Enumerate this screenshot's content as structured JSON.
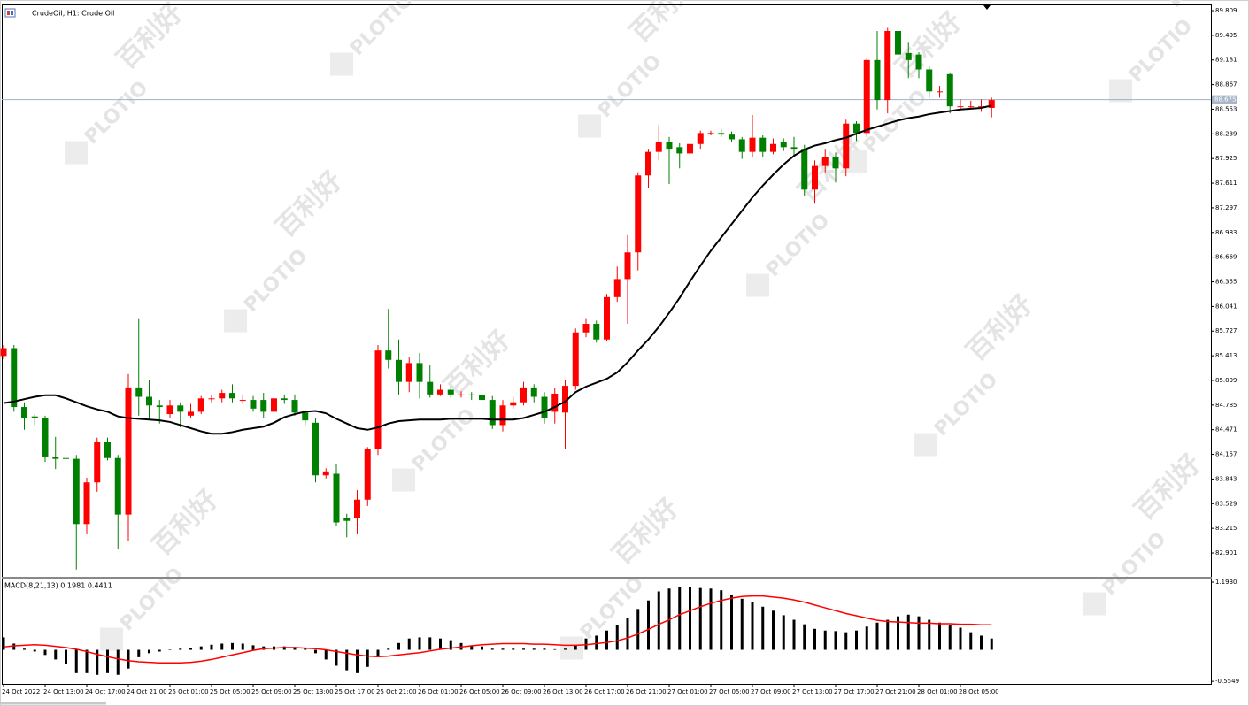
{
  "watermark": {
    "logo": "PLOTIO",
    "text": "百利好"
  },
  "chart_data": [
    {
      "type": "candlestick",
      "title": "CrudeOil, H1: Crude Oil",
      "categories": [
        "24 Oct 2022",
        null,
        null,
        null,
        "24 Oct 13:00",
        null,
        null,
        null,
        "24 Oct 17:00",
        null,
        null,
        null,
        "24 Oct 21:00",
        null,
        null,
        null,
        "25 Oct 01:00",
        null,
        null,
        null,
        "25 Oct 05:00",
        null,
        null,
        null,
        "25 Oct 09:00",
        null,
        null,
        null,
        "25 Oct 13:00",
        null,
        null,
        null,
        "25 Oct 17:00",
        null,
        null,
        null,
        "25 Oct 21:00",
        null,
        null,
        null,
        "26 Oct 01:00",
        null,
        null,
        null,
        "26 Oct 05:00",
        null,
        null,
        null,
        "26 Oct 09:00",
        null,
        null,
        null,
        "26 Oct 13:00",
        null,
        null,
        null,
        "26 Oct 17:00",
        null,
        null,
        null,
        "26 Oct 21:00",
        null,
        null,
        null,
        "27 Oct 01:00",
        null,
        null,
        null,
        "27 Oct 05:00",
        null,
        null,
        null,
        "27 Oct 09:00",
        null,
        null,
        null,
        "27 Oct 13:00",
        null,
        null,
        null,
        "27 Oct 17:00",
        null,
        null,
        null,
        "27 Oct 21:00",
        null,
        null,
        null,
        "28 Oct 01:00",
        null,
        null,
        null,
        "28 Oct 05:00",
        null,
        null,
        null
      ],
      "open": [
        85.41,
        85.51,
        84.76,
        84.64,
        84.62,
        84.12,
        84.11,
        84.1,
        83.27,
        83.8,
        84.31,
        84.11,
        83.39,
        85.01,
        84.89,
        84.78,
        84.67,
        84.78,
        84.65,
        84.7,
        84.87,
        84.87,
        84.94,
        84.85,
        84.85,
        84.85,
        84.7,
        84.87,
        84.85,
        84.69,
        84.56,
        83.89,
        83.91,
        83.35,
        83.35,
        83.58,
        84.22,
        85.48,
        85.36,
        85.08,
        85.32,
        85.08,
        84.92,
        84.98,
        84.92,
        84.92,
        84.91,
        84.85,
        84.53,
        84.78,
        84.82,
        85.01,
        84.89,
        84.7,
        84.69,
        85.03,
        85.71,
        85.82,
        85.62,
        86.16,
        86.39,
        86.73,
        87.71,
        88.01,
        88.14,
        88.07,
        87.99,
        88.11,
        88.25,
        88.25,
        88.23,
        88.17,
        88.01,
        88.19,
        88.01,
        88.14,
        88.07,
        88.05,
        87.53,
        87.83,
        87.94,
        87.8,
        88.37,
        88.25,
        89.18,
        88.67,
        89.55,
        89.27,
        89.25,
        89.06,
        88.78,
        89.0,
        88.59,
        88.59,
        88.58,
        88.57
      ],
      "high": [
        85.55,
        85.55,
        84.82,
        84.67,
        84.65,
        84.38,
        84.2,
        84.15,
        83.86,
        84.37,
        84.37,
        84.15,
        85.18,
        85.88,
        85.1,
        84.85,
        84.85,
        84.82,
        84.8,
        84.9,
        84.92,
        84.98,
        85.05,
        84.92,
        84.9,
        84.94,
        84.92,
        84.92,
        84.92,
        84.72,
        84.62,
        83.98,
        84.04,
        83.4,
        83.7,
        84.25,
        85.55,
        86.01,
        85.62,
        85.4,
        85.45,
        85.3,
        85.05,
        85.02,
        84.96,
        84.95,
        84.98,
        84.9,
        84.85,
        84.88,
        85.08,
        85.05,
        84.95,
        85.0,
        85.1,
        85.76,
        85.88,
        85.86,
        86.2,
        86.55,
        86.95,
        87.75,
        88.05,
        88.35,
        88.2,
        88.12,
        88.2,
        88.28,
        88.28,
        88.3,
        88.27,
        88.2,
        88.48,
        88.22,
        88.18,
        88.18,
        88.2,
        88.1,
        87.9,
        88.05,
        88.0,
        88.42,
        88.4,
        89.2,
        89.55,
        89.59,
        89.77,
        89.4,
        89.28,
        89.1,
        88.85,
        89.02,
        88.68,
        88.66,
        88.68,
        88.7
      ],
      "low": [
        85.37,
        84.7,
        84.47,
        84.53,
        84.06,
        83.97,
        83.71,
        82.69,
        83.14,
        83.68,
        84.08,
        82.95,
        83.05,
        84.65,
        84.6,
        84.55,
        84.62,
        84.5,
        84.62,
        84.67,
        84.82,
        84.82,
        84.82,
        84.8,
        84.7,
        84.62,
        84.65,
        84.8,
        84.65,
        84.53,
        83.8,
        83.85,
        83.25,
        83.1,
        83.14,
        83.5,
        84.15,
        85.25,
        84.92,
        84.95,
        84.87,
        84.88,
        84.9,
        84.88,
        84.88,
        84.85,
        84.8,
        84.48,
        84.45,
        84.74,
        84.78,
        84.82,
        84.55,
        84.55,
        84.22,
        84.98,
        85.65,
        85.58,
        85.6,
        86.1,
        85.82,
        86.5,
        87.55,
        87.9,
        87.6,
        87.8,
        87.95,
        88.05,
        88.22,
        88.2,
        88.13,
        87.92,
        87.95,
        87.95,
        87.98,
        88.02,
        87.97,
        87.45,
        87.35,
        87.75,
        87.62,
        87.7,
        88.15,
        88.2,
        88.55,
        88.5,
        89.05,
        88.95,
        88.95,
        88.7,
        88.7,
        88.5,
        88.55,
        88.55,
        88.52,
        88.45
      ],
      "close": [
        85.51,
        84.76,
        84.62,
        84.62,
        84.13,
        84.1,
        84.1,
        83.27,
        83.8,
        84.31,
        84.11,
        83.39,
        85.01,
        84.89,
        84.78,
        84.76,
        84.78,
        84.7,
        84.7,
        84.87,
        84.87,
        84.94,
        84.87,
        84.85,
        84.74,
        84.7,
        84.87,
        84.85,
        84.69,
        84.59,
        83.89,
        83.94,
        83.29,
        83.31,
        83.58,
        84.22,
        85.48,
        85.36,
        85.08,
        85.32,
        85.08,
        84.92,
        84.98,
        84.92,
        84.92,
        84.91,
        84.85,
        84.53,
        84.78,
        84.82,
        85.01,
        84.89,
        84.62,
        84.93,
        85.03,
        85.71,
        85.82,
        85.62,
        86.16,
        86.39,
        86.73,
        87.71,
        88.01,
        88.14,
        88.05,
        87.99,
        88.11,
        88.25,
        88.25,
        88.23,
        88.17,
        88.01,
        88.19,
        88.01,
        88.11,
        88.07,
        88.05,
        87.53,
        87.83,
        87.94,
        87.8,
        88.37,
        88.25,
        89.18,
        88.67,
        89.55,
        89.25,
        89.18,
        89.06,
        88.78,
        88.78,
        88.59,
        88.59,
        88.59,
        88.59,
        88.67
      ],
      "up_color": "#ff0000",
      "down_color": "#008000",
      "lines": [
        {
          "color": "#000000",
          "values": [
            84.81,
            84.83,
            84.86,
            84.89,
            84.91,
            84.91,
            84.87,
            84.82,
            84.77,
            84.73,
            84.7,
            84.64,
            84.62,
            84.61,
            84.6,
            84.59,
            84.57,
            84.53,
            84.49,
            84.45,
            84.42,
            84.42,
            84.44,
            84.47,
            84.49,
            84.51,
            84.56,
            84.63,
            84.67,
            84.7,
            84.71,
            84.68,
            84.61,
            84.55,
            84.49,
            84.47,
            84.5,
            84.55,
            84.58,
            84.59,
            84.6,
            84.6,
            84.6,
            84.61,
            84.61,
            84.61,
            84.61,
            84.6,
            84.6,
            84.6,
            84.62,
            84.66,
            84.7,
            84.76,
            84.83,
            84.95,
            85.02,
            85.07,
            85.12,
            85.2,
            85.33,
            85.48,
            85.62,
            85.78,
            85.96,
            86.15,
            86.36,
            86.56,
            86.75,
            86.92,
            87.09,
            87.26,
            87.43,
            87.58,
            87.72,
            87.85,
            87.96,
            88.04,
            88.09,
            88.12,
            88.16,
            88.19,
            88.24,
            88.29,
            88.33,
            88.37,
            88.41,
            88.44,
            88.46,
            88.49,
            88.51,
            88.53,
            88.55,
            88.56,
            88.57,
            88.6
          ]
        }
      ],
      "current_price": 88.675,
      "ylim": [
        82.597,
        89.888
      ],
      "yticks": [
        89.809,
        89.495,
        89.181,
        88.867,
        88.553,
        88.239,
        87.925,
        87.611,
        87.297,
        86.983,
        86.669,
        86.355,
        86.041,
        85.727,
        85.413,
        85.099,
        84.785,
        84.471,
        84.157,
        83.843,
        83.529,
        83.215,
        82.901
      ]
    },
    {
      "type": "macd",
      "title": "MACD(8,21,13) 0.1981 0.4411",
      "histogram": {
        "color": "#000000",
        "values": [
          0.22,
          0.11,
          0.02,
          -0.03,
          -0.09,
          -0.17,
          -0.25,
          -0.41,
          -0.41,
          -0.44,
          -0.41,
          -0.44,
          -0.33,
          -0.13,
          -0.06,
          -0.03,
          0.0,
          0.02,
          0.03,
          0.06,
          0.09,
          0.11,
          0.12,
          0.11,
          0.08,
          0.06,
          0.06,
          0.06,
          0.05,
          0.02,
          -0.06,
          -0.17,
          -0.28,
          -0.36,
          -0.41,
          -0.3,
          -0.13,
          0.02,
          0.12,
          0.2,
          0.22,
          0.22,
          0.2,
          0.17,
          0.12,
          0.08,
          0.06,
          0.02,
          0.02,
          0.02,
          0.02,
          0.02,
          0.02,
          0.01,
          0.02,
          0.08,
          0.2,
          0.25,
          0.34,
          0.44,
          0.56,
          0.72,
          0.87,
          1.03,
          1.08,
          1.11,
          1.11,
          1.09,
          1.08,
          1.05,
          0.97,
          0.9,
          0.84,
          0.76,
          0.69,
          0.61,
          0.53,
          0.45,
          0.37,
          0.34,
          0.33,
          0.31,
          0.34,
          0.41,
          0.48,
          0.53,
          0.59,
          0.62,
          0.59,
          0.53,
          0.48,
          0.44,
          0.39,
          0.31,
          0.25,
          0.2
        ]
      },
      "signal": {
        "color": "#ff0000",
        "values": [
          0.05,
          0.07,
          0.08,
          0.09,
          0.08,
          0.06,
          0.04,
          0.01,
          -0.03,
          -0.08,
          -0.12,
          -0.16,
          -0.19,
          -0.21,
          -0.22,
          -0.23,
          -0.23,
          -0.23,
          -0.22,
          -0.2,
          -0.17,
          -0.13,
          -0.09,
          -0.05,
          -0.01,
          0.02,
          0.03,
          0.04,
          0.04,
          0.03,
          0.02,
          0.0,
          -0.03,
          -0.06,
          -0.09,
          -0.11,
          -0.12,
          -0.11,
          -0.09,
          -0.07,
          -0.05,
          -0.02,
          0.01,
          0.03,
          0.05,
          0.07,
          0.09,
          0.1,
          0.11,
          0.11,
          0.11,
          0.1,
          0.1,
          0.09,
          0.08,
          0.08,
          0.09,
          0.11,
          0.13,
          0.16,
          0.21,
          0.28,
          0.36,
          0.45,
          0.53,
          0.62,
          0.69,
          0.76,
          0.82,
          0.87,
          0.91,
          0.94,
          0.95,
          0.95,
          0.93,
          0.91,
          0.88,
          0.84,
          0.79,
          0.74,
          0.69,
          0.64,
          0.6,
          0.56,
          0.52,
          0.5,
          0.49,
          0.48,
          0.47,
          0.47,
          0.46,
          0.46,
          0.45,
          0.45,
          0.44,
          0.44
        ]
      },
      "ylim": [
        -0.6,
        1.24
      ],
      "yticks": [
        {
          "value": 1.193,
          "label": "1.1930"
        },
        -0.5549
      ]
    }
  ]
}
